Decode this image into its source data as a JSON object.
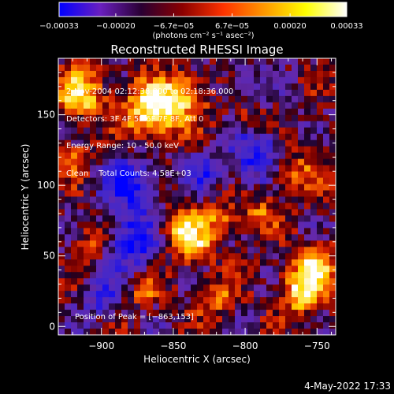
{
  "colorbar": {
    "tick_labels": [
      "−0.00033",
      "−0.00020",
      "−6.7e−05",
      "6.7e−05",
      "0.00020",
      "0.00033"
    ],
    "tick_values": [
      -0.00033,
      -0.0002,
      -6.7e-05,
      6.7e-05,
      0.0002,
      0.00033
    ],
    "range": [
      -0.00033,
      0.00033
    ],
    "units_label": "(photons cm⁻² s⁻¹ asec⁻²)",
    "colors": [
      "#0000ff",
      "#6a1fbf",
      "#2a0033",
      "#8b0000",
      "#ff3300",
      "#ff9900",
      "#ffff00",
      "#ffffff"
    ]
  },
  "chart_data": {
    "type": "heatmap",
    "title": "Reconstructed RHESSI Image",
    "xlabel": "Heliocentric X (arcsec)",
    "ylabel": "Heliocentric Y (arcsec)",
    "xlim": [
      -930,
      -737
    ],
    "ylim": [
      -6,
      190
    ],
    "x_ticks": [
      -900,
      -850,
      -800,
      -750
    ],
    "y_ticks": [
      0,
      50,
      100,
      150
    ],
    "x_tick_labels": [
      "−900",
      "−850",
      "−800",
      "−750"
    ],
    "y_tick_labels": [
      "0",
      "50",
      "100",
      "150"
    ],
    "peak": {
      "x": -863,
      "y": 153
    },
    "annotations": {
      "time_range": "2-Nov-2004 02:12:38.000 to 02:18:36.000",
      "detectors": "Detectors: 3F 4F 5F 6F 7F 8F, Att 0",
      "energy_range": "Energy Range: 10 - 50.0 keV",
      "clean_total": "Clean    Total Counts: 4.58E+03",
      "peak_label": "Position of Peak = [−863,153]"
    }
  },
  "footer": {
    "timestamp": "4-May-2022 17:33"
  }
}
